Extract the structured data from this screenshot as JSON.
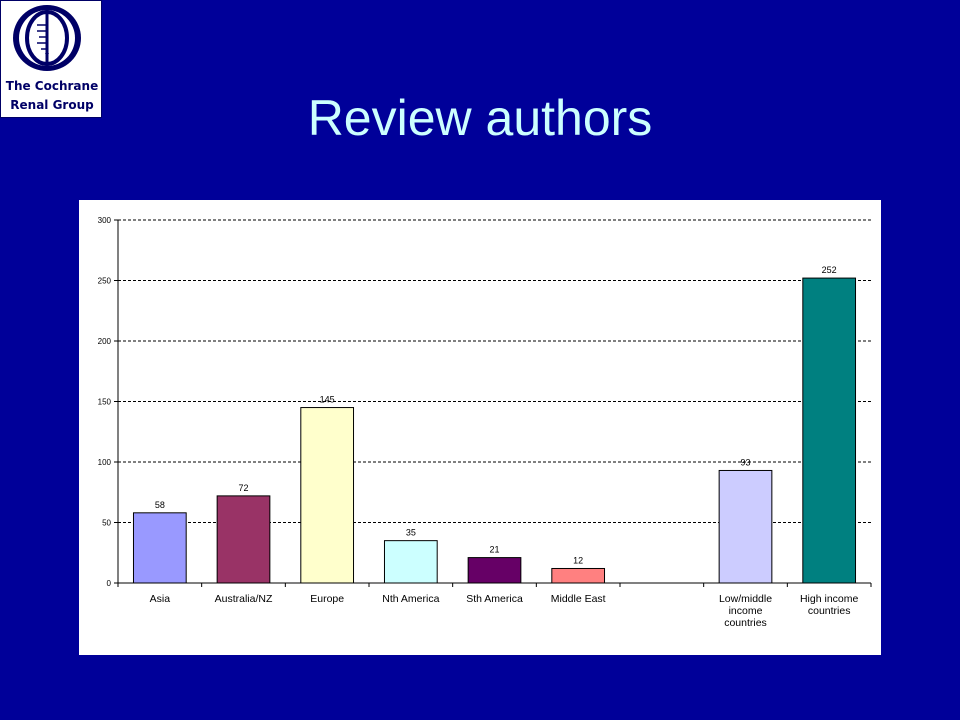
{
  "slide": {
    "title": "Review authors",
    "background": "#000099",
    "title_color": "#ccffff"
  },
  "logo": {
    "line1": "The Cochrane",
    "line2": "Renal Group",
    "icon": "cochrane-logo-icon"
  },
  "chart_data": {
    "type": "bar",
    "categories": [
      "Asia",
      "Australia/NZ",
      "Europe",
      "Nth America",
      "Sth America",
      "Middle East",
      "",
      "Low/middle income countries",
      "High income countries"
    ],
    "values": [
      58,
      72,
      145,
      35,
      21,
      12,
      null,
      93,
      252
    ],
    "colors": [
      "#9999ff",
      "#993366",
      "#ffffcc",
      "#ccffff",
      "#660066",
      "#ff8080",
      null,
      "#ccccff",
      "#008080"
    ],
    "title": "",
    "xlabel": "",
    "ylabel": "",
    "ylim": [
      0,
      300
    ],
    "yticks": [
      0,
      50,
      100,
      150,
      200,
      250,
      300
    ],
    "grid": true,
    "legend": "none"
  }
}
